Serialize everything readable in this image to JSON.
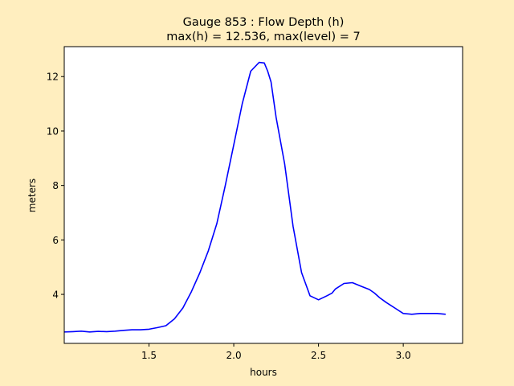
{
  "chart_data": {
    "type": "line",
    "title": "Gauge 853 : Flow Depth (h)",
    "subtitle": "max(h) =  12.536,    max(level) = 7",
    "xlabel": "hours",
    "ylabel": "meters",
    "xlim": [
      1.0,
      3.35
    ],
    "ylim": [
      2.2,
      13.1
    ],
    "xticks": [
      1.5,
      2.0,
      2.5,
      3.0
    ],
    "xtick_labels": [
      "1.5",
      "2.0",
      "2.5",
      "3.0"
    ],
    "yticks": [
      4,
      6,
      8,
      10,
      12
    ],
    "ytick_labels": [
      "4",
      "6",
      "8",
      "10",
      "12"
    ],
    "grid": false,
    "colors": {
      "figure_bg": "#ffeebf",
      "axes_bg": "#ffffff",
      "line": "#0000ff"
    },
    "series": [
      {
        "x": [
          1.0,
          1.05,
          1.1,
          1.15,
          1.2,
          1.25,
          1.3,
          1.35,
          1.4,
          1.45,
          1.5,
          1.55,
          1.6,
          1.65,
          1.7,
          1.75,
          1.8,
          1.85,
          1.9,
          1.95,
          2.0,
          2.05,
          2.1,
          2.15,
          2.18,
          2.2,
          2.22,
          2.25,
          2.3,
          2.35,
          2.4,
          2.45,
          2.5,
          2.55,
          2.58,
          2.6,
          2.65,
          2.7,
          2.75,
          2.8,
          2.83,
          2.86,
          2.9,
          2.95,
          3.0,
          3.05,
          3.1,
          3.15,
          3.2,
          3.25
        ],
        "y": [
          2.62,
          2.63,
          2.65,
          2.62,
          2.64,
          2.63,
          2.65,
          2.68,
          2.7,
          2.7,
          2.72,
          2.78,
          2.85,
          3.1,
          3.5,
          4.1,
          4.8,
          5.6,
          6.6,
          8.0,
          9.5,
          11.0,
          12.2,
          12.52,
          12.5,
          12.2,
          11.8,
          10.5,
          8.8,
          6.5,
          4.8,
          3.95,
          3.8,
          3.95,
          4.05,
          4.2,
          4.4,
          4.43,
          4.3,
          4.18,
          4.05,
          3.88,
          3.7,
          3.5,
          3.3,
          3.27,
          3.3,
          3.3,
          3.3,
          3.27
        ]
      }
    ]
  }
}
